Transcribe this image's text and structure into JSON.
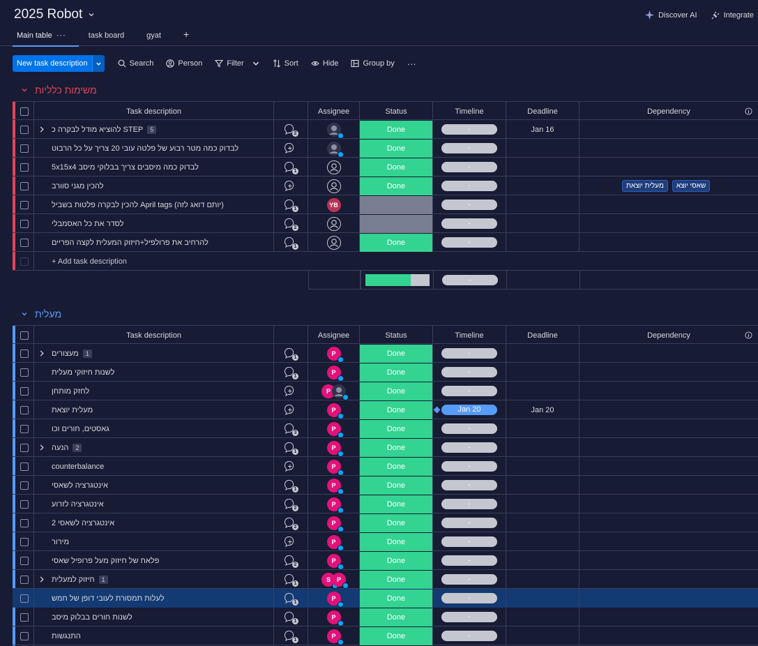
{
  "board": {
    "title": "2025 Robot",
    "discover_ai": "Discover AI",
    "integrate": "Integrate",
    "tabs": [
      {
        "label": "Main table"
      },
      {
        "label": "task board"
      },
      {
        "label": "gyat"
      },
      {
        "label": "+"
      }
    ]
  },
  "toolbar": {
    "new_task": "New task description",
    "search": "Search",
    "person": "Person",
    "filter": "Filter",
    "sort": "Sort",
    "hide": "Hide",
    "group_by": "Group by",
    "more": "···"
  },
  "columns": {
    "task": "Task description",
    "assignee": "Assignee",
    "status": "Status",
    "timeline": "Timeline",
    "deadline": "Deadline",
    "dependency": "Dependency"
  },
  "colors": {
    "group1": "#e2445c",
    "group2": "#579bfc",
    "done": "#33d391"
  },
  "group1": {
    "title": "משימות כלליות",
    "add_label": "+ Add task description",
    "rows": [
      {
        "task": "להוציא מודל לבקרה כ STEP",
        "sub": "5",
        "upd": "2",
        "asg": "dark",
        "status": "Done",
        "timeline": "-",
        "deadline": "Jan 16",
        "dep": []
      },
      {
        "task": "לבדוק כמה מטר רבוע של פלטה עובי 20 צריך על כל הרבוט",
        "sub": "",
        "upd": "+",
        "asg": "dark",
        "status": "Done",
        "timeline": "-",
        "deadline": "",
        "dep": []
      },
      {
        "task": "5x15x4 לבדוק כמה מיסבים צריך בבלוקי מיסב",
        "sub": "",
        "upd": "1",
        "asg": "empty",
        "status": "Done",
        "timeline": "-",
        "deadline": "",
        "dep": []
      },
      {
        "task": "להכין מגני סוורב",
        "sub": "",
        "upd": "+",
        "asg": "empty",
        "status": "Done",
        "timeline": "-",
        "deadline": "",
        "dep": [
          "שאסי יוצא",
          "מעלית יוצאת"
        ]
      },
      {
        "task": "להכין לבקרה פלטות בשביל April tags (יותם דואג לזה)",
        "sub": "",
        "upd": "1",
        "asg": "yb",
        "status": "",
        "timeline": "-",
        "deadline": "",
        "dep": []
      },
      {
        "task": "לסדר את כל האסמבלי",
        "sub": "",
        "upd": "2",
        "asg": "empty",
        "status": "",
        "timeline": "-",
        "deadline": "",
        "dep": []
      },
      {
        "task": "להרחיב את פרולפיל+חיזוק המעלית לקצה הפריים",
        "sub": "",
        "upd": "1",
        "asg": "empty",
        "status": "Done",
        "timeline": "-",
        "deadline": "",
        "dep": []
      }
    ],
    "summary": {
      "done_fraction": 0.71,
      "timeline": "-"
    }
  },
  "group2": {
    "title": "מעלית",
    "rows": [
      {
        "task": "מעצורים",
        "sub": "1",
        "upd": "1",
        "asg": "p",
        "status": "Done",
        "timeline": "-",
        "deadline": ""
      },
      {
        "task": "לשנות חיזוקי מעלית",
        "sub": "",
        "upd": "1",
        "asg": "p",
        "status": "Done",
        "timeline": "-",
        "deadline": ""
      },
      {
        "task": "לחזק מותחן",
        "sub": "",
        "upd": "+",
        "asg": "p-dark",
        "status": "Done",
        "timeline": "-",
        "deadline": ""
      },
      {
        "task": "מעלית יוצאת",
        "sub": "",
        "upd": "+",
        "asg": "p",
        "status": "Done",
        "timeline": "Jan 20",
        "deadline": "Jan 20"
      },
      {
        "task": "גאסטים, חורים וכו",
        "sub": "",
        "upd": "3",
        "asg": "p",
        "status": "Done",
        "timeline": "-",
        "deadline": ""
      },
      {
        "task": "הנעה",
        "sub": "2",
        "upd": "1",
        "asg": "p",
        "status": "Done",
        "timeline": "-",
        "deadline": ""
      },
      {
        "task": "counterbalance",
        "sub": "",
        "upd": "+",
        "asg": "p",
        "status": "Done",
        "timeline": "-",
        "deadline": ""
      },
      {
        "task": "אינטגרציה לשאסי",
        "sub": "",
        "upd": "1",
        "asg": "p",
        "status": "Done",
        "timeline": "-",
        "deadline": ""
      },
      {
        "task": "אינטגרציה לזרוע",
        "sub": "",
        "upd": "2",
        "asg": "p",
        "status": "Done",
        "timeline": "-",
        "deadline": ""
      },
      {
        "task": "אינטגרציה לשאסי 2",
        "sub": "",
        "upd": "2",
        "asg": "p",
        "status": "Done",
        "timeline": "-",
        "deadline": ""
      },
      {
        "task": "מירור",
        "sub": "",
        "upd": "+",
        "asg": "p",
        "status": "Done",
        "timeline": "-",
        "deadline": ""
      },
      {
        "task": "פלאח של חיזוק מעל פרופיל שאסי",
        "sub": "",
        "upd": "2",
        "asg": "p",
        "status": "Done",
        "timeline": "-",
        "deadline": ""
      },
      {
        "task": "חיזוק למעלית",
        "sub": "1",
        "upd": "1",
        "asg": "s-p",
        "status": "Done",
        "timeline": "-",
        "deadline": ""
      },
      {
        "task": "לעלות תמסורת לעובי דופן של חמש",
        "sub": "",
        "upd": "1",
        "asg": "p",
        "status": "Done",
        "timeline": "-",
        "deadline": "",
        "highlight": true
      },
      {
        "task": "לשנות חורים בבלוק מיסב",
        "sub": "",
        "upd": "1",
        "asg": "p",
        "status": "Done",
        "timeline": "-",
        "deadline": ""
      },
      {
        "task": "התנגשות",
        "sub": "",
        "upd": "1",
        "asg": "p",
        "status": "Done",
        "timeline": "-",
        "deadline": ""
      }
    ]
  }
}
